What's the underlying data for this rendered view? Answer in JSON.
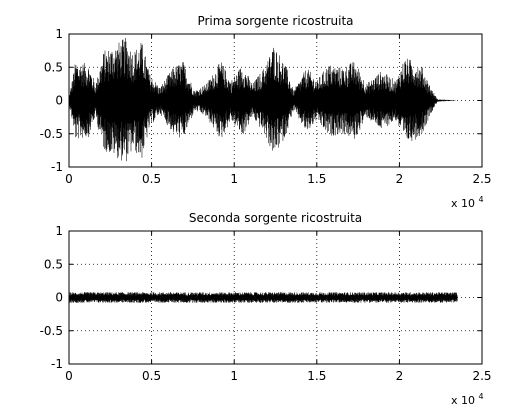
{
  "chart_data": [
    {
      "type": "line",
      "title": "Prima sorgente ricostruita",
      "xlim": [
        0,
        25000
      ],
      "ylim": [
        -1,
        1
      ],
      "x_ticks": [
        0,
        5000,
        10000,
        15000,
        20000,
        25000
      ],
      "x_tick_labels": [
        "0",
        "0.5",
        "1",
        "1.5",
        "2",
        "2.5"
      ],
      "y_ticks": [
        -1,
        -0.5,
        0,
        0.5,
        1
      ],
      "y_tick_labels": [
        "-1",
        "-0.5",
        "0",
        "0.5",
        "1"
      ],
      "x_exponent_label": "x 10",
      "x_exponent_power": "4",
      "grid": true,
      "series": [
        {
          "color": "#000000",
          "sample_count": 23500,
          "envelope": [
            {
              "x": 0,
              "amp": 0.05
            },
            {
              "x": 400,
              "amp": 0.6
            },
            {
              "x": 1200,
              "amp": 0.55
            },
            {
              "x": 1600,
              "amp": 0.25
            },
            {
              "x": 2100,
              "amp": 0.75
            },
            {
              "x": 2800,
              "amp": 0.85
            },
            {
              "x": 3400,
              "amp": 0.95
            },
            {
              "x": 3900,
              "amp": 0.75
            },
            {
              "x": 4400,
              "amp": 0.9
            },
            {
              "x": 4900,
              "amp": 0.4
            },
            {
              "x": 5500,
              "amp": 0.2
            },
            {
              "x": 6300,
              "amp": 0.5
            },
            {
              "x": 6900,
              "amp": 0.6
            },
            {
              "x": 7600,
              "amp": 0.15
            },
            {
              "x": 8300,
              "amp": 0.25
            },
            {
              "x": 9200,
              "amp": 0.6
            },
            {
              "x": 9800,
              "amp": 0.3
            },
            {
              "x": 10500,
              "amp": 0.55
            },
            {
              "x": 11100,
              "amp": 0.25
            },
            {
              "x": 11800,
              "amp": 0.5
            },
            {
              "x": 12400,
              "amp": 0.85
            },
            {
              "x": 13100,
              "amp": 0.55
            },
            {
              "x": 13600,
              "amp": 0.15
            },
            {
              "x": 14400,
              "amp": 0.5
            },
            {
              "x": 15000,
              "amp": 0.3
            },
            {
              "x": 15700,
              "amp": 0.55
            },
            {
              "x": 16500,
              "amp": 0.5
            },
            {
              "x": 17300,
              "amp": 0.6
            },
            {
              "x": 18000,
              "amp": 0.25
            },
            {
              "x": 18900,
              "amp": 0.45
            },
            {
              "x": 19800,
              "amp": 0.3
            },
            {
              "x": 20300,
              "amp": 0.65
            },
            {
              "x": 20900,
              "amp": 0.6
            },
            {
              "x": 21400,
              "amp": 0.5
            },
            {
              "x": 21900,
              "amp": 0.2
            },
            {
              "x": 22300,
              "amp": 0.02
            },
            {
              "x": 23500,
              "amp": 0.0
            }
          ]
        }
      ]
    },
    {
      "type": "line",
      "title": "Seconda sorgente ricostruita",
      "xlim": [
        0,
        25000
      ],
      "ylim": [
        -1,
        1
      ],
      "x_ticks": [
        0,
        5000,
        10000,
        15000,
        20000,
        25000
      ],
      "x_tick_labels": [
        "0",
        "0.5",
        "1",
        "1.5",
        "2",
        "2.5"
      ],
      "y_ticks": [
        -1,
        -0.5,
        0,
        0.5,
        1
      ],
      "y_tick_labels": [
        "-1",
        "-0.5",
        "0",
        "0.5",
        "1"
      ],
      "x_exponent_label": "x 10",
      "x_exponent_power": "4",
      "grid": true,
      "series": [
        {
          "color": "#000000",
          "sample_count": 23500,
          "envelope": [
            {
              "x": 0,
              "amp": 0.08
            },
            {
              "x": 23500,
              "amp": 0.08
            }
          ]
        }
      ]
    }
  ]
}
